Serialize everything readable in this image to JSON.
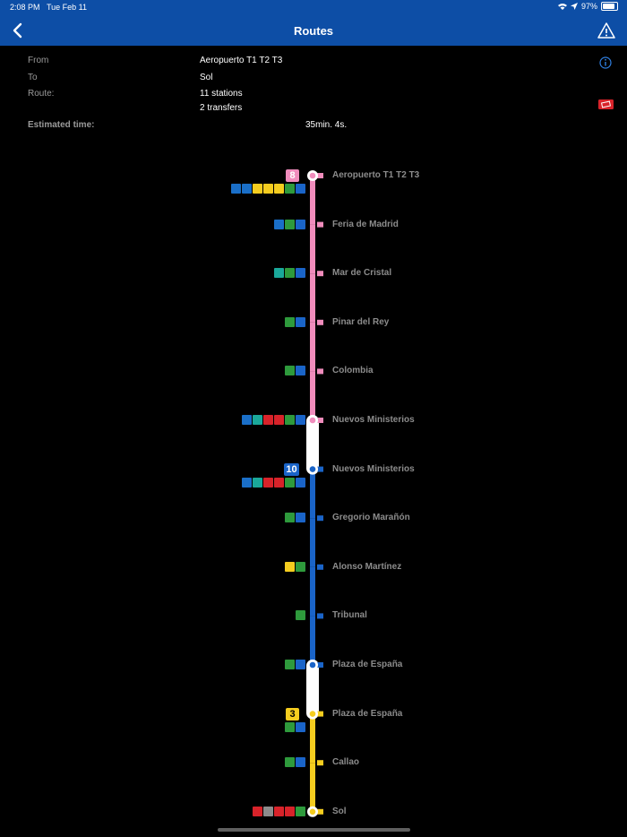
{
  "status": {
    "time": "2:08 PM",
    "date": "Tue Feb 11",
    "battery": "97%"
  },
  "header": {
    "title": "Routes"
  },
  "summary": {
    "from_label": "From",
    "from_value": "Aeropuerto T1 T2 T3",
    "to_label": "To",
    "to_value": "Sol",
    "route_label": "Route:",
    "stations": "11 stations",
    "transfers": "2 transfers",
    "time_label": "Estimated time:",
    "time_value": "35min. 4s."
  },
  "lines": [
    {
      "badge": "8",
      "color": "#f08cbc",
      "badge_text_color": "#fff"
    },
    {
      "badge": "10",
      "color": "#1a64c8",
      "badge_text_color": "#fff"
    },
    {
      "badge": "3",
      "color": "#f5cd1f",
      "badge_text_color": "#000"
    }
  ],
  "stations": [
    {
      "name": "Aeropuerto T1 T2 T3",
      "line": 0,
      "terminal": true,
      "services": [
        "parking",
        "bus",
        "bus-yellow",
        "train-yellow",
        "airport",
        "elevator",
        "accessible"
      ]
    },
    {
      "name": "Feria de Madrid",
      "line": 0,
      "services": [
        "parking",
        "elevator",
        "accessible"
      ]
    },
    {
      "name": "Mar de Cristal",
      "line": 0,
      "services": [
        "metro-ligero",
        "elevator",
        "accessible"
      ]
    },
    {
      "name": "Pinar del Rey",
      "line": 0,
      "services": [
        "elevator",
        "accessible"
      ]
    },
    {
      "name": "Colombia",
      "line": 0,
      "services": [
        "elevator",
        "accessible"
      ]
    },
    {
      "name": "Nuevos Ministerios",
      "line": 0,
      "transfer": true,
      "services": [
        "parking",
        "metro-ligero",
        "cercanias",
        "renfe",
        "elevator",
        "accessible"
      ]
    },
    {
      "name": "Nuevos Ministerios",
      "line": 1,
      "transfer": true,
      "services": [
        "parking",
        "metro-ligero",
        "cercanias",
        "renfe",
        "elevator",
        "accessible"
      ]
    },
    {
      "name": "Gregorio Marañón",
      "line": 1,
      "services": [
        "elevator",
        "accessible"
      ]
    },
    {
      "name": "Alonso Martínez",
      "line": 1,
      "services": [
        "bus-yellow",
        "elevator"
      ]
    },
    {
      "name": "Tribunal",
      "line": 1,
      "services": [
        "elevator"
      ]
    },
    {
      "name": "Plaza de España",
      "line": 1,
      "transfer": true,
      "services": [
        "elevator",
        "accessible"
      ]
    },
    {
      "name": "Plaza de España",
      "line": 2,
      "transfer": true,
      "services": [
        "elevator",
        "accessible"
      ]
    },
    {
      "name": "Callao",
      "line": 2,
      "services": [
        "elevator",
        "accessible"
      ]
    },
    {
      "name": "Sol",
      "line": 2,
      "terminal": true,
      "services": [
        "renfe-alt",
        "bus-grey",
        "cercanias",
        "renfe",
        "elevator"
      ]
    }
  ],
  "service_colors": {
    "parking": "#1a6fc8",
    "bus": "#1a6fc8",
    "bus-yellow": "#f5cd1f",
    "train-yellow": "#f5cd1f",
    "airport": "#f5cd1f",
    "elevator": "#2e9a3c",
    "accessible": "#1a64c8",
    "metro-ligero": "#1aa89a",
    "cercanias": "#d8232a",
    "renfe": "#d8232a",
    "renfe-alt": "#d8232a",
    "bus-grey": "#8c8c8c"
  }
}
